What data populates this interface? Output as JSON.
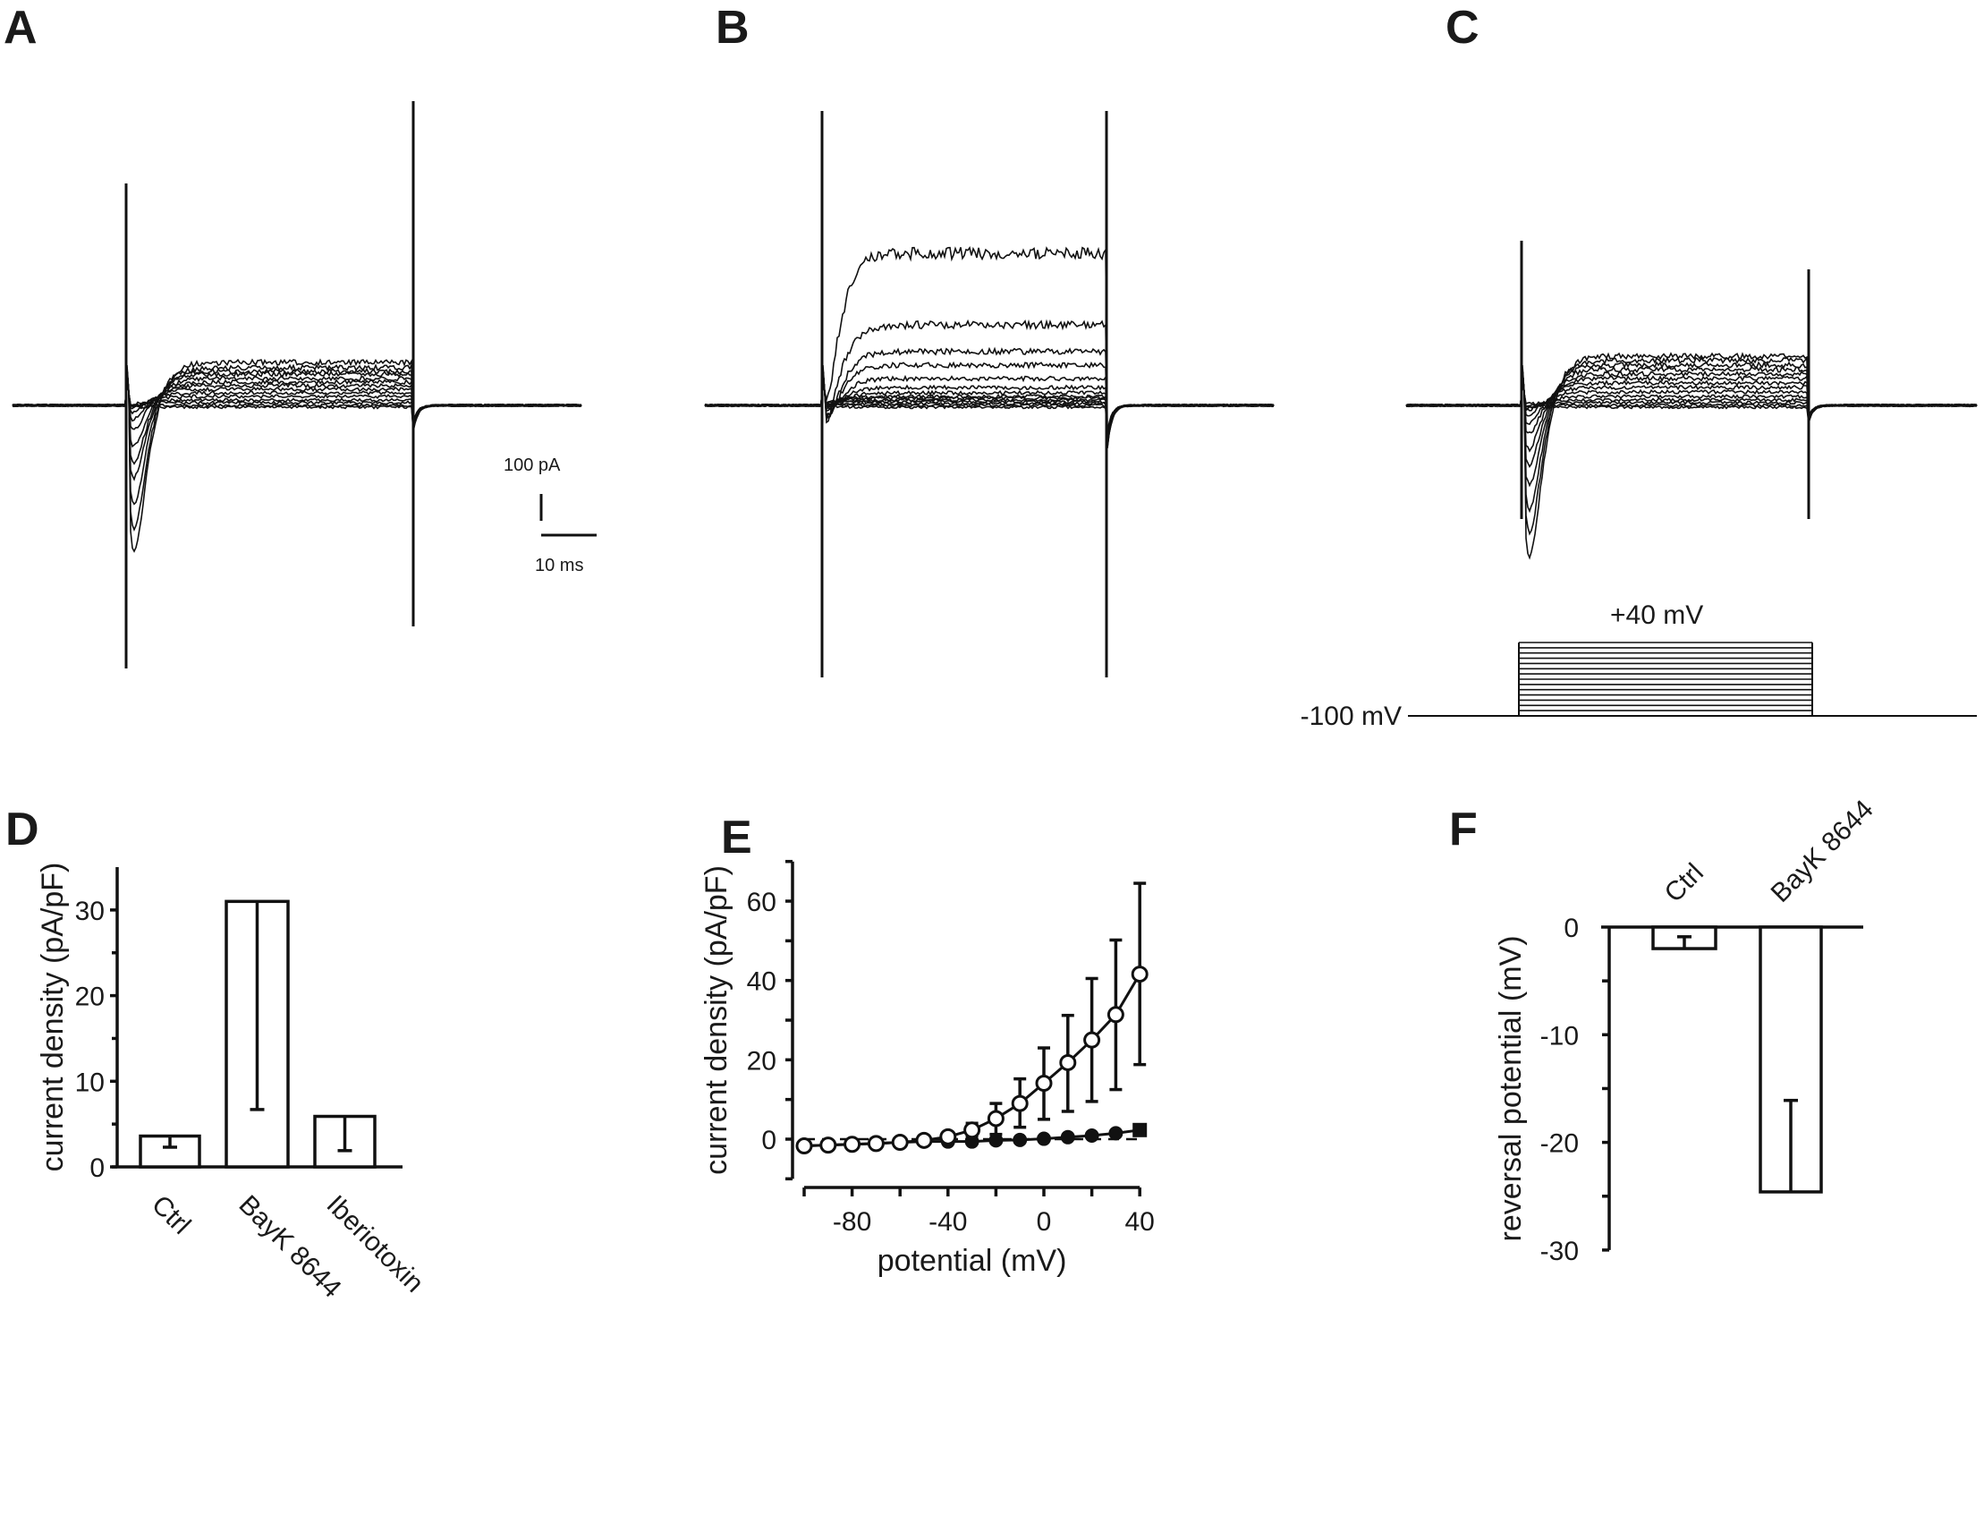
{
  "panels": {
    "A": "A",
    "B": "B",
    "C": "C",
    "D": "D",
    "E": "E",
    "F": "F"
  },
  "scale_bar": {
    "current": "100 pA",
    "time": "10 ms"
  },
  "protocol": {
    "holding": "-100 mV",
    "step_max": "+40 mV"
  },
  "chart_data": [
    {
      "panel": "D",
      "type": "bar",
      "ylabel": "current density (pA/pF)",
      "xlabel": "",
      "ylim": [
        0,
        35
      ],
      "yticks": [
        0,
        10,
        20,
        30
      ],
      "categories": [
        "Ctrl",
        "BayK 8644",
        "Iberiotoxin"
      ],
      "values": [
        3.6,
        31.0,
        5.9
      ],
      "error_low": [
        2.3,
        6.7,
        1.9
      ]
    },
    {
      "panel": "E",
      "type": "line",
      "xlabel": "potential (mV)",
      "ylabel": "current density (pA/pF)",
      "xlim": [
        -100,
        40
      ],
      "ylim": [
        -10,
        70
      ],
      "xticks": [
        -80,
        -40,
        0,
        40
      ],
      "yticks": [
        0,
        20,
        40,
        60
      ],
      "x": [
        -100,
        -90,
        -80,
        -70,
        -60,
        -50,
        -40,
        -30,
        -20,
        -10,
        0,
        10,
        20,
        30,
        40
      ],
      "series": [
        {
          "name": "open circles",
          "marker": "open-circle",
          "values": [
            -1.7,
            -1.5,
            -1.3,
            -1.1,
            -0.8,
            -0.3,
            0.6,
            2.3,
            5.2,
            9.0,
            14.1,
            19.3,
            25.0,
            31.4,
            41.6
          ],
          "error_high": [
            null,
            null,
            null,
            null,
            null,
            null,
            null,
            4.0,
            9.0,
            15.2,
            23.0,
            31.2,
            40.5,
            50.2,
            64.5
          ],
          "error_low": [
            null,
            null,
            null,
            null,
            null,
            null,
            null,
            0.8,
            1.2,
            3.0,
            5.0,
            7.0,
            9.5,
            12.5,
            18.8
          ]
        },
        {
          "name": "filled circles",
          "marker": "filled-circle",
          "values": [
            -1.7,
            -1.5,
            -1.3,
            -1.1,
            -0.8,
            -0.6,
            -0.6,
            -0.6,
            -0.3,
            -0.2,
            0.1,
            0.5,
            0.9,
            1.5,
            2.3
          ]
        }
      ],
      "reference_line": 0
    },
    {
      "panel": "F",
      "type": "bar",
      "ylabel": "reversal potential (mV)",
      "ylim": [
        -30,
        0
      ],
      "yticks": [
        0,
        -10,
        -20,
        -30
      ],
      "categories": [
        "Ctrl",
        "BayK 8644"
      ],
      "values": [
        -2.0,
        -24.6
      ],
      "error_high": [
        -0.9,
        -16.1
      ]
    }
  ]
}
